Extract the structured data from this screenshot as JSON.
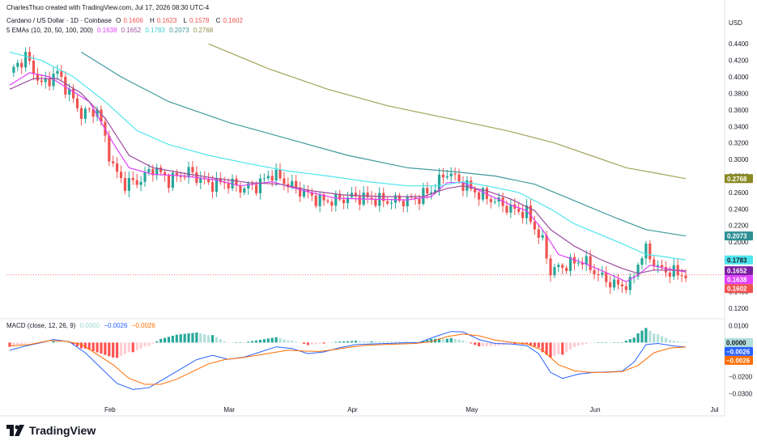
{
  "header": {
    "author_line": "CharlesThuo created with TradingView.com, Jul 17, 2026 08:30 UTC-4",
    "symbol": "Cardano / US Dollar · 1D · Coinbase",
    "ohlc": {
      "o_label": "O",
      "o": "0.1606",
      "h_label": "H",
      "h": "0.1623",
      "l_label": "L",
      "l": "0.1578",
      "c_label": "C",
      "c": "0.1602"
    },
    "ema_label": "5 EMAs (10, 20, 50, 100, 200)",
    "ema_values": [
      "0.1638",
      "0.1652",
      "0.1783",
      "0.2073",
      "0.2768"
    ],
    "macd_label": "MACD (close, 12, 26, 9)",
    "macd_values": [
      "0.0000",
      "−0.0026",
      "−0.0026"
    ]
  },
  "currency_label": "USD",
  "brand": "TradingView",
  "colors": {
    "up": "#26a69a",
    "down": "#ef5350",
    "ema10": "#e040fb",
    "ema20": "#9c4d9e",
    "ema50": "#4ee6ee",
    "ema100": "#3f9a9e",
    "ema200": "#a3a35a",
    "macd_line": "#2962ff",
    "signal_line": "#ff6d00",
    "hist_up": "#26a69a",
    "hist_down": "#ef5350",
    "last_price": "#ef5350"
  },
  "chart_data": [
    {
      "type": "candlestick",
      "title": "Cardano / US Dollar · 1D · Coinbase",
      "x_ticks": [
        "Feb",
        "Mar",
        "Apr",
        "May",
        "Jun",
        "Jul"
      ],
      "y_ticks": [
        "0.4400",
        "0.4200",
        "0.4000",
        "0.3800",
        "0.3600",
        "0.3400",
        "0.3200",
        "0.3000",
        "0.2800",
        "0.2600",
        "0.2400",
        "0.2200",
        "0.2000",
        "0.1800",
        "0.1600",
        "0.1400",
        "0.1200"
      ],
      "ylim": [
        0.109,
        0.45
      ],
      "price_path": [
        [
          0,
          0.405
        ],
        [
          4,
          0.425
        ],
        [
          8,
          0.39
        ],
        [
          12,
          0.405
        ],
        [
          15,
          0.38
        ],
        [
          18,
          0.355
        ],
        [
          22,
          0.36
        ],
        [
          26,
          0.29
        ],
        [
          29,
          0.27
        ],
        [
          33,
          0.275
        ],
        [
          36,
          0.29
        ],
        [
          40,
          0.275
        ],
        [
          45,
          0.285
        ],
        [
          50,
          0.27
        ],
        [
          55,
          0.272
        ],
        [
          58,
          0.265
        ],
        [
          62,
          0.268
        ],
        [
          66,
          0.283
        ],
        [
          70,
          0.27
        ],
        [
          74,
          0.26
        ],
        [
          78,
          0.25
        ],
        [
          82,
          0.25
        ],
        [
          86,
          0.255
        ],
        [
          90,
          0.253
        ],
        [
          94,
          0.25
        ],
        [
          98,
          0.25
        ],
        [
          102,
          0.252
        ],
        [
          106,
          0.262
        ],
        [
          110,
          0.285
        ],
        [
          114,
          0.27
        ],
        [
          118,
          0.258
        ],
        [
          122,
          0.25
        ],
        [
          126,
          0.24
        ],
        [
          130,
          0.235
        ],
        [
          134,
          0.2
        ],
        [
          136,
          0.165
        ],
        [
          140,
          0.172
        ],
        [
          144,
          0.178
        ],
        [
          148,
          0.16
        ],
        [
          152,
          0.148
        ],
        [
          156,
          0.148
        ],
        [
          158,
          0.175
        ],
        [
          160,
          0.19
        ],
        [
          163,
          0.168
        ],
        [
          167,
          0.163
        ],
        [
          170,
          0.1602
        ]
      ],
      "ema_series": [
        {
          "name": "EMA 10",
          "value": 0.1638,
          "path": [
            [
              0,
              0.39
            ],
            [
              5,
              0.405
            ],
            [
              10,
              0.4
            ],
            [
              15,
              0.385
            ],
            [
              20,
              0.37
            ],
            [
              26,
              0.32
            ],
            [
              30,
              0.29
            ],
            [
              36,
              0.282
            ],
            [
              44,
              0.28
            ],
            [
              52,
              0.275
            ],
            [
              58,
              0.268
            ],
            [
              66,
              0.273
            ],
            [
              74,
              0.262
            ],
            [
              82,
              0.253
            ],
            [
              90,
              0.252
            ],
            [
              100,
              0.251
            ],
            [
              106,
              0.255
            ],
            [
              110,
              0.272
            ],
            [
              114,
              0.272
            ],
            [
              120,
              0.258
            ],
            [
              126,
              0.245
            ],
            [
              130,
              0.238
            ],
            [
              134,
              0.215
            ],
            [
              138,
              0.185
            ],
            [
              144,
              0.175
            ],
            [
              150,
              0.163
            ],
            [
              155,
              0.152
            ],
            [
              158,
              0.16
            ],
            [
              161,
              0.172
            ],
            [
              165,
              0.168
            ],
            [
              170,
              0.1638
            ]
          ]
        },
        {
          "name": "EMA 20",
          "value": 0.1652,
          "path": [
            [
              0,
              0.385
            ],
            [
              6,
              0.398
            ],
            [
              12,
              0.398
            ],
            [
              18,
              0.38
            ],
            [
              24,
              0.35
            ],
            [
              30,
              0.305
            ],
            [
              36,
              0.29
            ],
            [
              44,
              0.283
            ],
            [
              52,
              0.277
            ],
            [
              60,
              0.272
            ],
            [
              68,
              0.27
            ],
            [
              76,
              0.262
            ],
            [
              84,
              0.257
            ],
            [
              94,
              0.255
            ],
            [
              104,
              0.255
            ],
            [
              110,
              0.265
            ],
            [
              114,
              0.268
            ],
            [
              120,
              0.262
            ],
            [
              126,
              0.252
            ],
            [
              132,
              0.238
            ],
            [
              136,
              0.215
            ],
            [
              142,
              0.195
            ],
            [
              148,
              0.18
            ],
            [
              154,
              0.168
            ],
            [
              158,
              0.162
            ],
            [
              162,
              0.166
            ],
            [
              166,
              0.166
            ],
            [
              170,
              0.1652
            ]
          ]
        },
        {
          "name": "EMA 50",
          "value": 0.1783,
          "path": [
            [
              0,
              0.43
            ],
            [
              8,
              0.42
            ],
            [
              16,
              0.4
            ],
            [
              24,
              0.37
            ],
            [
              32,
              0.335
            ],
            [
              40,
              0.318
            ],
            [
              50,
              0.305
            ],
            [
              60,
              0.295
            ],
            [
              70,
              0.286
            ],
            [
              80,
              0.28
            ],
            [
              90,
              0.273
            ],
            [
              100,
              0.268
            ],
            [
              108,
              0.268
            ],
            [
              114,
              0.273
            ],
            [
              120,
              0.268
            ],
            [
              128,
              0.26
            ],
            [
              136,
              0.24
            ],
            [
              142,
              0.222
            ],
            [
              148,
              0.21
            ],
            [
              154,
              0.198
            ],
            [
              160,
              0.185
            ],
            [
              165,
              0.182
            ],
            [
              170,
              0.1783
            ]
          ]
        },
        {
          "name": "EMA 100",
          "value": 0.2073,
          "path": [
            [
              18,
              0.43
            ],
            [
              28,
              0.4
            ],
            [
              40,
              0.37
            ],
            [
              55,
              0.345
            ],
            [
              70,
              0.325
            ],
            [
              85,
              0.305
            ],
            [
              100,
              0.29
            ],
            [
              112,
              0.285
            ],
            [
              122,
              0.28
            ],
            [
              132,
              0.27
            ],
            [
              142,
              0.25
            ],
            [
              152,
              0.23
            ],
            [
              160,
              0.215
            ],
            [
              170,
              0.2073
            ]
          ]
        },
        {
          "name": "EMA 200",
          "value": 0.2768,
          "path": [
            [
              50,
              0.44
            ],
            [
              65,
              0.41
            ],
            [
              80,
              0.385
            ],
            [
              95,
              0.365
            ],
            [
              110,
              0.35
            ],
            [
              125,
              0.335
            ],
            [
              137,
              0.32
            ],
            [
              146,
              0.305
            ],
            [
              155,
              0.29
            ],
            [
              163,
              0.283
            ],
            [
              170,
              0.2768
            ]
          ]
        }
      ],
      "last_price": 0.1602
    },
    {
      "type": "line",
      "title": "MACD (close, 12, 26, 9)",
      "y_ticks": [
        "0.0100",
        "0.0000",
        "−0.0100",
        "−0.0200",
        "−0.0300"
      ],
      "ylim": [
        -0.0335,
        0.013
      ],
      "series": [
        {
          "name": "MACD",
          "value": -0.0026,
          "path": [
            [
              0,
              -0.0045
            ],
            [
              4,
              -0.002
            ],
            [
              8,
              0
            ],
            [
              11,
              0.0018
            ],
            [
              15,
              0.0005
            ],
            [
              19,
              -0.006
            ],
            [
              23,
              -0.015
            ],
            [
              27,
              -0.024
            ],
            [
              31,
              -0.0275
            ],
            [
              35,
              -0.0265
            ],
            [
              39,
              -0.021
            ],
            [
              43,
              -0.0155
            ],
            [
              47,
              -0.01
            ],
            [
              51,
              -0.0075
            ],
            [
              55,
              -0.0098
            ],
            [
              59,
              -0.0085
            ],
            [
              63,
              -0.0055
            ],
            [
              67,
              -0.0025
            ],
            [
              71,
              -0.0035
            ],
            [
              75,
              -0.0065
            ],
            [
              79,
              -0.0055
            ],
            [
              83,
              -0.003
            ],
            [
              87,
              -0.0012
            ],
            [
              91,
              -0.0008
            ],
            [
              95,
              -0.0005
            ],
            [
              99,
              -0.0002
            ],
            [
              103,
              0
            ],
            [
              107,
              0.0035
            ],
            [
              111,
              0.0065
            ],
            [
              114,
              0.0062
            ],
            [
              118,
              0.0018
            ],
            [
              122,
              -0.0005
            ],
            [
              126,
              -0.0008
            ],
            [
              130,
              -0.0018
            ],
            [
              133,
              -0.0065
            ],
            [
              136,
              -0.0175
            ],
            [
              139,
              -0.021
            ],
            [
              143,
              -0.0185
            ],
            [
              147,
              -0.0175
            ],
            [
              151,
              -0.0172
            ],
            [
              154,
              -0.0168
            ],
            [
              157,
              -0.0115
            ],
            [
              160,
              -0.0012
            ],
            [
              163,
              -0.0005
            ],
            [
              167,
              -0.002
            ],
            [
              170,
              -0.0026
            ]
          ]
        },
        {
          "name": "Signal",
          "value": -0.0026,
          "path": [
            [
              0,
              -0.002
            ],
            [
              5,
              -0.0012
            ],
            [
              10,
              0.0012
            ],
            [
              14,
              0.0008
            ],
            [
              18,
              -0.001
            ],
            [
              22,
              -0.007
            ],
            [
              26,
              -0.013
            ],
            [
              30,
              -0.021
            ],
            [
              34,
              -0.0245
            ],
            [
              38,
              -0.0245
            ],
            [
              42,
              -0.0215
            ],
            [
              46,
              -0.017
            ],
            [
              50,
              -0.0125
            ],
            [
              54,
              -0.01
            ],
            [
              58,
              -0.009
            ],
            [
              62,
              -0.0075
            ],
            [
              66,
              -0.006
            ],
            [
              70,
              -0.0045
            ],
            [
              74,
              -0.005
            ],
            [
              78,
              -0.0052
            ],
            [
              82,
              -0.004
            ],
            [
              86,
              -0.0025
            ],
            [
              90,
              -0.0015
            ],
            [
              96,
              -0.001
            ],
            [
              102,
              -0.0005
            ],
            [
              106,
              0.0005
            ],
            [
              110,
              0.0035
            ],
            [
              114,
              0.005
            ],
            [
              118,
              0.004
            ],
            [
              122,
              0.0015
            ],
            [
              126,
              0.0002
            ],
            [
              130,
              -0.0008
            ],
            [
              134,
              -0.0045
            ],
            [
              138,
              -0.013
            ],
            [
              142,
              -0.0165
            ],
            [
              146,
              -0.0175
            ],
            [
              150,
              -0.0175
            ],
            [
              154,
              -0.017
            ],
            [
              158,
              -0.0135
            ],
            [
              162,
              -0.006
            ],
            [
              166,
              -0.0032
            ],
            [
              170,
              -0.0026
            ]
          ]
        }
      ]
    }
  ]
}
